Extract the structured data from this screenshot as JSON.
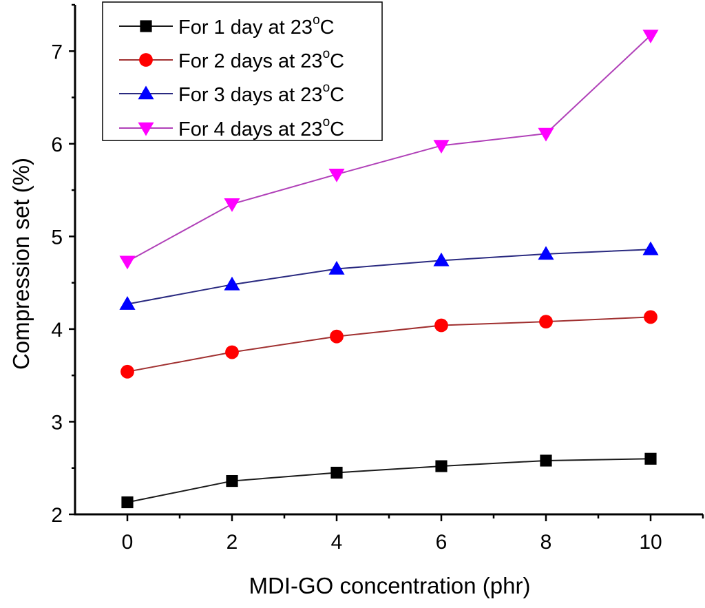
{
  "chart_data": {
    "type": "line",
    "title": "",
    "xlabel": "MDI-GO concentration (phr)",
    "ylabel": "Compression set (%)",
    "xlim": [
      -1,
      11
    ],
    "ylim": [
      2,
      7.5
    ],
    "x_major_ticks": [
      0,
      2,
      4,
      6,
      8,
      10
    ],
    "x_minor_ticks": [
      1,
      3,
      5,
      7,
      9,
      11
    ],
    "y_major_ticks": [
      2,
      3,
      4,
      5,
      6,
      7
    ],
    "y_minor_ticks": [
      2.5,
      3.5,
      4.5,
      5.5,
      6.5,
      7.5
    ],
    "x_tick_labels": [
      "0",
      "2",
      "4",
      "6",
      "8",
      "10"
    ],
    "y_tick_labels": [
      "2",
      "3",
      "4",
      "5",
      "6",
      "7"
    ],
    "grid": false,
    "legend_position": "top-left",
    "x": [
      0,
      2,
      4,
      6,
      8,
      10
    ],
    "series": [
      {
        "name": "For 1 day at 23°C",
        "label_main": "For 1 day at 23",
        "label_sup": "o",
        "label_unit": "C",
        "marker": "square",
        "marker_color": "#000000",
        "line_color": "#1a1a1a",
        "values": [
          2.13,
          2.36,
          2.45,
          2.52,
          2.58,
          2.6
        ]
      },
      {
        "name": "For 2 days at 23°C",
        "label_main": "For 2 days at 23",
        "label_sup": "o",
        "label_unit": "C",
        "marker": "circle",
        "marker_color": "#ff0000",
        "line_color": "#a03030",
        "values": [
          3.54,
          3.75,
          3.92,
          4.04,
          4.08,
          4.13
        ]
      },
      {
        "name": "For 3 days at 23°C",
        "label_main": "For 3 days at 23",
        "label_sup": "o",
        "label_unit": "C",
        "marker": "triangle-up",
        "marker_color": "#0000ff",
        "line_color": "#2a2a80",
        "values": [
          4.27,
          4.48,
          4.65,
          4.74,
          4.81,
          4.86
        ]
      },
      {
        "name": "For 4 days at 23°C",
        "label_main": "For 4 days at 23",
        "label_sup": "o",
        "label_unit": "C",
        "marker": "triangle-down",
        "marker_color": "#ff00ff",
        "line_color": "#b040b8",
        "values": [
          4.73,
          5.35,
          5.67,
          5.98,
          6.11,
          7.17
        ]
      }
    ]
  }
}
